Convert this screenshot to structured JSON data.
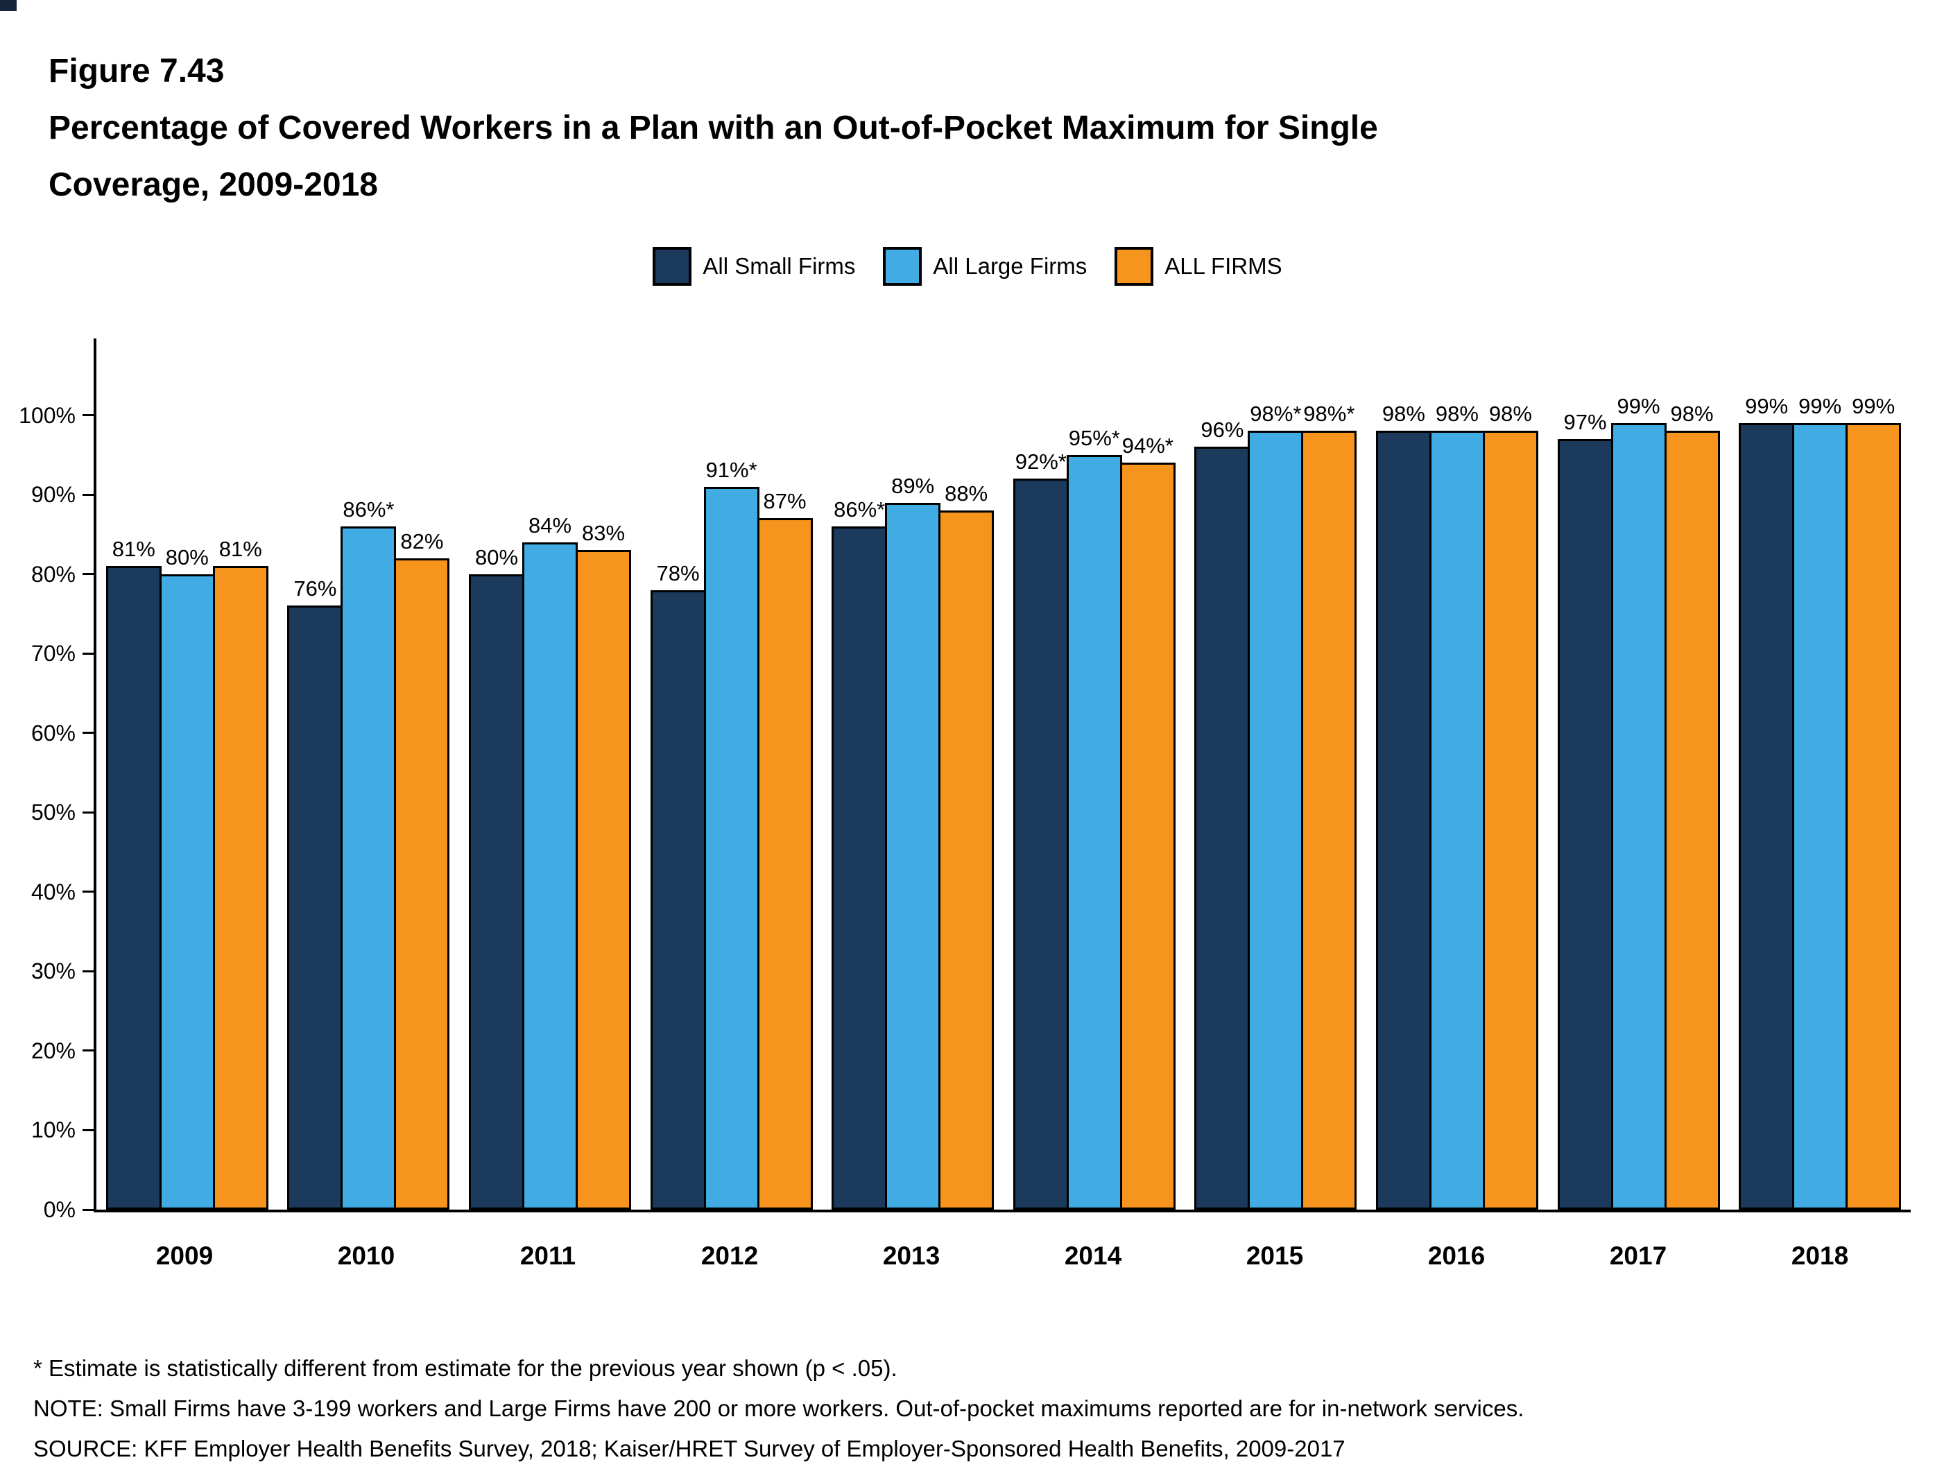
{
  "figure": {
    "number": "Figure 7.43",
    "title_line1": "Percentage of Covered Workers in a Plan with an Out-of-Pocket Maximum for Single",
    "title_line2": "Coverage, 2009-2018"
  },
  "legend": [
    {
      "label": "All Small Firms",
      "color": "#1b3a5c"
    },
    {
      "label": "All Large Firms",
      "color": "#41ace4"
    },
    {
      "label": "ALL FIRMS",
      "color": "#f7941e"
    }
  ],
  "chart_data": {
    "type": "bar",
    "title": "Percentage of Covered Workers in a Plan with an Out-of-Pocket Maximum for Single Coverage, 2009-2018",
    "categories": [
      "2009",
      "2010",
      "2011",
      "2012",
      "2013",
      "2014",
      "2015",
      "2016",
      "2017",
      "2018"
    ],
    "series": [
      {
        "name": "All Small Firms",
        "color": "#1b3a5c",
        "values": [
          81,
          76,
          80,
          78,
          86,
          92,
          96,
          98,
          97,
          99
        ],
        "labels": [
          "81%",
          "76%",
          "80%",
          "78%",
          "86%*",
          "92%*",
          "96%",
          "98%",
          "97%",
          "99%"
        ]
      },
      {
        "name": "All Large Firms",
        "color": "#41ace4",
        "values": [
          80,
          86,
          84,
          91,
          89,
          95,
          98,
          98,
          99,
          99
        ],
        "labels": [
          "80%",
          "86%*",
          "84%",
          "91%*",
          "89%",
          "95%*",
          "98%*",
          "98%",
          "99%",
          "99%"
        ]
      },
      {
        "name": "ALL FIRMS",
        "color": "#f7941e",
        "values": [
          81,
          82,
          83,
          87,
          88,
          94,
          98,
          98,
          98,
          99
        ],
        "labels": [
          "81%",
          "82%",
          "83%",
          "87%",
          "88%",
          "94%*",
          "98%*",
          "98%",
          "98%",
          "99%"
        ]
      }
    ],
    "xlabel": "",
    "ylabel": "",
    "ylim": [
      0,
      110
    ],
    "yticks": [
      "0%",
      "10%",
      "20%",
      "30%",
      "40%",
      "50%",
      "60%",
      "70%",
      "80%",
      "90%",
      "100%"
    ],
    "grid": false,
    "legend_position": "top"
  },
  "footnotes": [
    "* Estimate is statistically different from estimate for the previous year shown (p < .05).",
    "NOTE: Small Firms have 3-199 workers and Large Firms have 200 or more workers. Out-of-pocket maximums reported are for in-network services.",
    "SOURCE: KFF Employer Health Benefits Survey, 2018; Kaiser/HRET Survey of Employer-Sponsored Health Benefits, 2009-2017"
  ]
}
